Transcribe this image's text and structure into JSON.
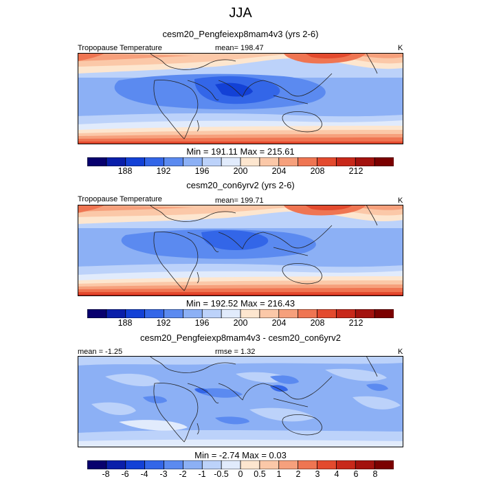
{
  "figure_title": "JJA",
  "chart_data": [
    {
      "type": "heatmap",
      "title": "cesm20_Pengfeiexp8mam4v3 (yrs 2-6)",
      "left_label": "Tropopause Temperature",
      "center_label": "mean= 198.47",
      "units": "K",
      "min": 191.11,
      "max": 215.61,
      "min_max_text": "Min = 191.11 Max = 215.61",
      "colorbar_ticks": [
        "188",
        "192",
        "196",
        "200",
        "204",
        "208",
        "212"
      ],
      "colorbar_colors": [
        "#08006e",
        "#0a1faa",
        "#1341d6",
        "#3366e8",
        "#5b8af0",
        "#8cb0f5",
        "#bcd2fa",
        "#e1ebfc",
        "#fde6cf",
        "#fbc8a8",
        "#f6a07c",
        "#ef7552",
        "#e34a2e",
        "#c8281a",
        "#a3120e",
        "#7b0000"
      ]
    },
    {
      "type": "heatmap",
      "title": "cesm20_con6yrv2 (yrs 2-6)",
      "left_label": "Tropopause Temperature",
      "center_label": "mean= 199.71",
      "units": "K",
      "min": 192.52,
      "max": 216.43,
      "min_max_text": "Min = 192.52 Max = 216.43",
      "colorbar_ticks": [
        "188",
        "192",
        "196",
        "200",
        "204",
        "208",
        "212"
      ],
      "colorbar_colors": [
        "#08006e",
        "#0a1faa",
        "#1341d6",
        "#3366e8",
        "#5b8af0",
        "#8cb0f5",
        "#bcd2fa",
        "#e1ebfc",
        "#fde6cf",
        "#fbc8a8",
        "#f6a07c",
        "#ef7552",
        "#e34a2e",
        "#c8281a",
        "#a3120e",
        "#7b0000"
      ]
    },
    {
      "type": "heatmap",
      "title": "cesm20_Pengfeiexp8mam4v3 - cesm20_con6yrv2",
      "left_label": "mean =  -1.25",
      "center_label": "rmse =    1.32",
      "units": "K",
      "min": -2.74,
      "max": 0.03,
      "min_max_text": "Min =  -2.74 Max =   0.03",
      "colorbar_ticks": [
        "-8",
        "-6",
        "-4",
        "-3",
        "-2",
        "-1",
        "-0.5",
        "0",
        "0.5",
        "1",
        "2",
        "3",
        "4",
        "6",
        "8"
      ],
      "colorbar_colors": [
        "#08006e",
        "#0a1faa",
        "#1341d6",
        "#3366e8",
        "#5b8af0",
        "#8cb0f5",
        "#bcd2fa",
        "#e1ebfc",
        "#fde6cf",
        "#fbc8a8",
        "#f6a07c",
        "#ef7552",
        "#e34a2e",
        "#c8281a",
        "#a3120e",
        "#7b0000"
      ]
    }
  ]
}
